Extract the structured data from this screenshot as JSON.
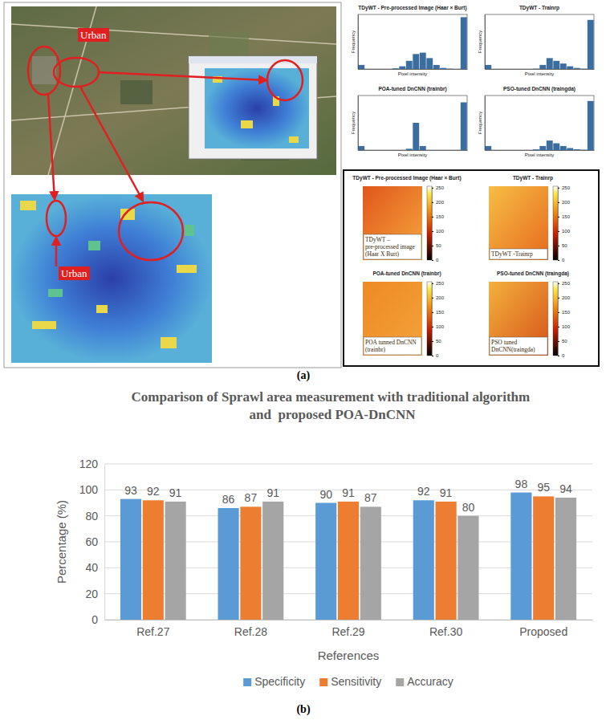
{
  "panel_a": {
    "label": "(a)",
    "urban_labels": [
      "Urban",
      "Urban"
    ],
    "heatmaps": [
      {
        "title": "TDyWT - Pre-processed Image (Haar × Burt)",
        "annotation": "TDyWT – pre-processed image (Haar X Burt)"
      },
      {
        "title": "TDyWT - Trainrp",
        "annotation": "TDyWT -Trainrp"
      },
      {
        "title": "POA-tuned DnCNN (trainbr)",
        "annotation": "POA tunned DnCNN (trainbr)"
      },
      {
        "title": "PSO-tuned DnCNN (traingda)",
        "annotation": "PSO tuned DnCNN(traingda)"
      }
    ],
    "colorbar": {
      "range": [
        0,
        255
      ],
      "ticks": [
        0,
        50,
        100,
        150,
        200,
        250
      ]
    }
  },
  "panel_b": {
    "label": "(b)"
  },
  "chart_data": [
    {
      "type": "histogram",
      "title": "TDyWT - Pre-processed Image (Haar × Burt)",
      "x_label": "Pixel intensity",
      "y_label": "Frequency",
      "bins": [
        0,
        16,
        32,
        48,
        64,
        80,
        96,
        112,
        128,
        144,
        160,
        176,
        192,
        208,
        224,
        240,
        256
      ],
      "counts": [
        3000,
        0,
        0,
        0,
        0,
        500,
        2000,
        6000,
        11000,
        12000,
        8000,
        3000,
        800,
        200,
        0,
        38000
      ],
      "xlim": [
        0,
        256
      ],
      "ylim": [
        0,
        40000
      ],
      "tick_labels": false,
      "color": "#3b6e9e"
    },
    {
      "type": "histogram",
      "title": "TDyWT - Trainrp",
      "x_label": "Pixel intensity",
      "y_label": "Frequency",
      "bins": [
        0,
        16,
        32,
        48,
        64,
        80,
        96,
        112,
        128,
        144,
        160,
        176,
        192,
        208,
        224,
        240,
        256
      ],
      "counts": [
        3000,
        0,
        0,
        0,
        0,
        0,
        0,
        200,
        3000,
        8000,
        6000,
        4000,
        2000,
        800,
        200,
        36000
      ],
      "xlim": [
        0,
        256
      ],
      "ylim": [
        0,
        40000
      ],
      "tick_labels": false,
      "color": "#3b6e9e"
    },
    {
      "type": "histogram",
      "title": "POA-tuned DnCNN (trainbr)",
      "x_label": "Pixel intensity",
      "y_label": "Frequency",
      "bins": [
        0,
        16,
        32,
        48,
        64,
        80,
        96,
        112,
        128,
        144,
        160,
        176,
        192,
        208,
        224,
        240,
        256
      ],
      "counts": [
        3000,
        0,
        0,
        0,
        0,
        0,
        0,
        1000,
        20000,
        3000,
        0,
        0,
        0,
        0,
        0,
        35000
      ],
      "xlim": [
        0,
        256
      ],
      "ylim": [
        0,
        40000
      ],
      "tick_labels": false,
      "color": "#3b6e9e"
    },
    {
      "type": "histogram",
      "title": "PSO-tuned DnCNN (traingda)",
      "x_label": "Pixel intensity",
      "y_label": "Frequency",
      "bins": [
        0,
        16,
        32,
        48,
        64,
        80,
        96,
        112,
        128,
        144,
        160,
        176,
        192,
        208,
        224,
        240,
        256
      ],
      "counts": [
        3000,
        0,
        0,
        0,
        0,
        0,
        0,
        500,
        3000,
        7000,
        5000,
        3000,
        1500,
        600,
        200,
        36000
      ],
      "xlim": [
        0,
        256
      ],
      "ylim": [
        0,
        40000
      ],
      "tick_labels": false,
      "color": "#3b6e9e"
    },
    {
      "type": "bar",
      "title": "Comparison of Sprawl area measurement with traditional algorithm  and  proposed POA-DnCNN",
      "x_label": "References",
      "y_label": "Percentage (%)",
      "categories": [
        "Ref.27",
        "Ref.28",
        "Ref.29",
        "Ref.30",
        "Proposed"
      ],
      "series": [
        {
          "name": "Specificity",
          "color": "#5b9bd5",
          "values": [
            93,
            86,
            90,
            92,
            98
          ]
        },
        {
          "name": "Sensitivity",
          "color": "#ed7d31",
          "values": [
            92,
            87,
            91,
            91,
            95
          ]
        },
        {
          "name": "Accuracy",
          "color": "#a5a5a5",
          "values": [
            91,
            91,
            87,
            80,
            94
          ]
        }
      ],
      "ylim": [
        0,
        120
      ],
      "yticks": [
        0,
        20,
        40,
        60,
        80,
        100,
        120
      ],
      "grid": true,
      "data_labels": true,
      "legend": "bottom"
    }
  ]
}
